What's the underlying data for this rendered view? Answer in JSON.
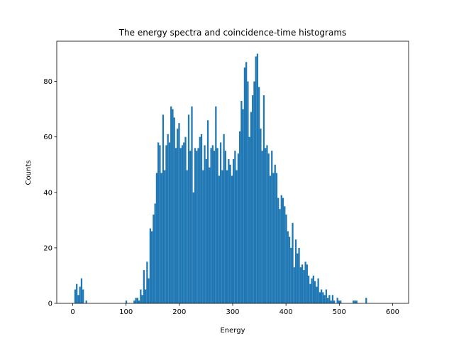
{
  "chart_data": {
    "type": "histogram",
    "title": "The energy spectra and coincidence-time histograms",
    "x_label": "Energy",
    "y_label": "Counts",
    "color": "#1f77b4",
    "grid": false,
    "bins": [
      0,
      3,
      6,
      9,
      12,
      15,
      18,
      21,
      24,
      27,
      30,
      33,
      36,
      39,
      42,
      45,
      48,
      51,
      54,
      57,
      60,
      63,
      66,
      69,
      72,
      75,
      78,
      81,
      84,
      87,
      90,
      93,
      96,
      99,
      102,
      105,
      108,
      111,
      114,
      117,
      120,
      123,
      126,
      129,
      132,
      135,
      138,
      141,
      144,
      147,
      150,
      153,
      156,
      159,
      162,
      165,
      168,
      171,
      174,
      177,
      180,
      183,
      186,
      189,
      192,
      195,
      198,
      201,
      204,
      207,
      210,
      213,
      216,
      219,
      222,
      225,
      228,
      231,
      234,
      237,
      240,
      243,
      246,
      249,
      252,
      255,
      258,
      261,
      264,
      267,
      270,
      273,
      276,
      279,
      282,
      285,
      288,
      291,
      294,
      297,
      300,
      303,
      306,
      309,
      312,
      315,
      318,
      321,
      324,
      327,
      330,
      333,
      336,
      339,
      342,
      345,
      348,
      351,
      354,
      357,
      360,
      363,
      366,
      369,
      372,
      375,
      378,
      381,
      384,
      387,
      390,
      393,
      396,
      399,
      402,
      405,
      408,
      411,
      414,
      417,
      420,
      423,
      426,
      429,
      432,
      435,
      438,
      441,
      444,
      447,
      450,
      453,
      456,
      459,
      462,
      465,
      468,
      471,
      474,
      477,
      480,
      483,
      486,
      489,
      492,
      495,
      498,
      501,
      504,
      507,
      510,
      513,
      516,
      519,
      522,
      525,
      528,
      531,
      534,
      537,
      540,
      543,
      546,
      549,
      552,
      555,
      558,
      561,
      564,
      567,
      570,
      573,
      576,
      579,
      582,
      585,
      588,
      591,
      594,
      597,
      600
    ],
    "values": [
      0,
      5,
      7,
      3,
      6,
      9,
      5,
      0,
      1,
      0,
      0,
      0,
      0,
      0,
      0,
      0,
      0,
      0,
      0,
      0,
      0,
      0,
      0,
      0,
      0,
      0,
      0,
      0,
      0,
      0,
      0,
      0,
      0,
      1,
      0,
      0,
      0,
      0,
      1,
      2,
      2,
      1,
      5,
      3,
      12,
      5,
      15,
      9,
      27,
      26,
      32,
      36,
      47,
      58,
      57,
      47,
      68,
      48,
      57,
      61,
      58,
      71,
      70,
      67,
      56,
      63,
      65,
      56,
      57,
      58,
      60,
      48,
      68,
      55,
      71,
      40,
      56,
      55,
      56,
      60,
      61,
      48,
      57,
      52,
      66,
      49,
      56,
      57,
      55,
      71,
      56,
      46,
      58,
      48,
      61,
      55,
      48,
      52,
      50,
      46,
      52,
      55,
      48,
      54,
      62,
      73,
      70,
      85,
      87,
      80,
      60,
      69,
      75,
      80,
      89,
      90,
      78,
      63,
      55,
      75,
      56,
      57,
      54,
      46,
      55,
      47,
      50,
      47,
      38,
      34,
      39,
      38,
      35,
      32,
      26,
      24,
      20,
      29,
      13,
      23,
      18,
      20,
      13,
      14,
      12,
      15,
      14,
      10,
      7,
      9,
      10,
      8,
      6,
      9,
      4,
      5,
      4,
      3,
      5,
      2,
      3,
      1,
      3,
      1,
      0,
      2,
      1,
      1,
      0,
      0,
      0,
      0,
      0,
      0,
      0,
      1,
      1,
      1,
      0,
      0,
      0,
      0,
      0,
      2,
      0,
      0,
      0,
      0,
      0,
      0,
      0,
      0,
      0,
      0,
      0,
      0,
      0,
      0,
      0,
      0
    ],
    "xlim": [
      -30,
      630
    ],
    "xticks": [
      0,
      100,
      200,
      300,
      400,
      500,
      600
    ],
    "ylim": [
      0,
      94.5
    ],
    "yticks": [
      0,
      20,
      40,
      60,
      80
    ]
  }
}
